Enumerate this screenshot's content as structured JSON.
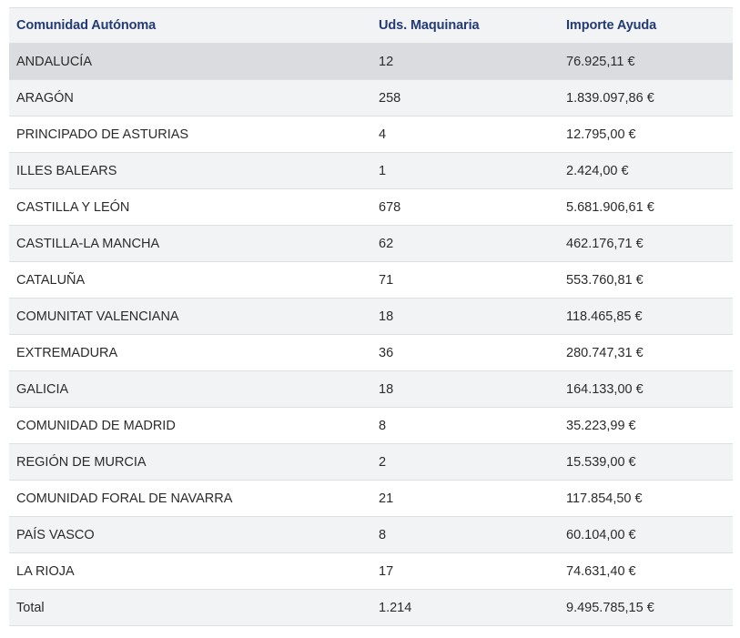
{
  "table": {
    "headers": [
      "Comunidad Autónoma",
      "Uds. Maquinaria",
      "Importe Ayuda"
    ],
    "rows": [
      [
        "ANDALUCÍA",
        "12",
        "76.925,11 €"
      ],
      [
        "ARAGÓN",
        "258",
        "1.839.097,86 €"
      ],
      [
        "PRINCIPADO DE ASTURIAS",
        "4",
        "12.795,00 €"
      ],
      [
        "ILLES BALEARS",
        "1",
        "2.424,00 €"
      ],
      [
        "CASTILLA Y LEÓN",
        "678",
        "5.681.906,61 €"
      ],
      [
        "CASTILLA-LA MANCHA",
        "62",
        "462.176,71 €"
      ],
      [
        "CATALUÑA",
        "71",
        "553.760,81 €"
      ],
      [
        "COMUNITAT VALENCIANA",
        "18",
        "118.465,85 €"
      ],
      [
        "EXTREMADURA",
        "36",
        "280.747,31 €"
      ],
      [
        "GALICIA",
        "18",
        "164.133,00 €"
      ],
      [
        "COMUNIDAD DE MADRID",
        "8",
        "35.223,99 €"
      ],
      [
        "REGIÓN DE MURCIA",
        "2",
        "15.539,00 €"
      ],
      [
        "COMUNIDAD FORAL DE NAVARRA",
        "21",
        "117.854,50 €"
      ],
      [
        "PAÍS VASCO",
        "8",
        "60.104,00 €"
      ],
      [
        "LA RIOJA",
        "17",
        "74.631,40 €"
      ]
    ],
    "total": [
      "Total",
      "1.214",
      "9.495.785,15 €"
    ]
  }
}
